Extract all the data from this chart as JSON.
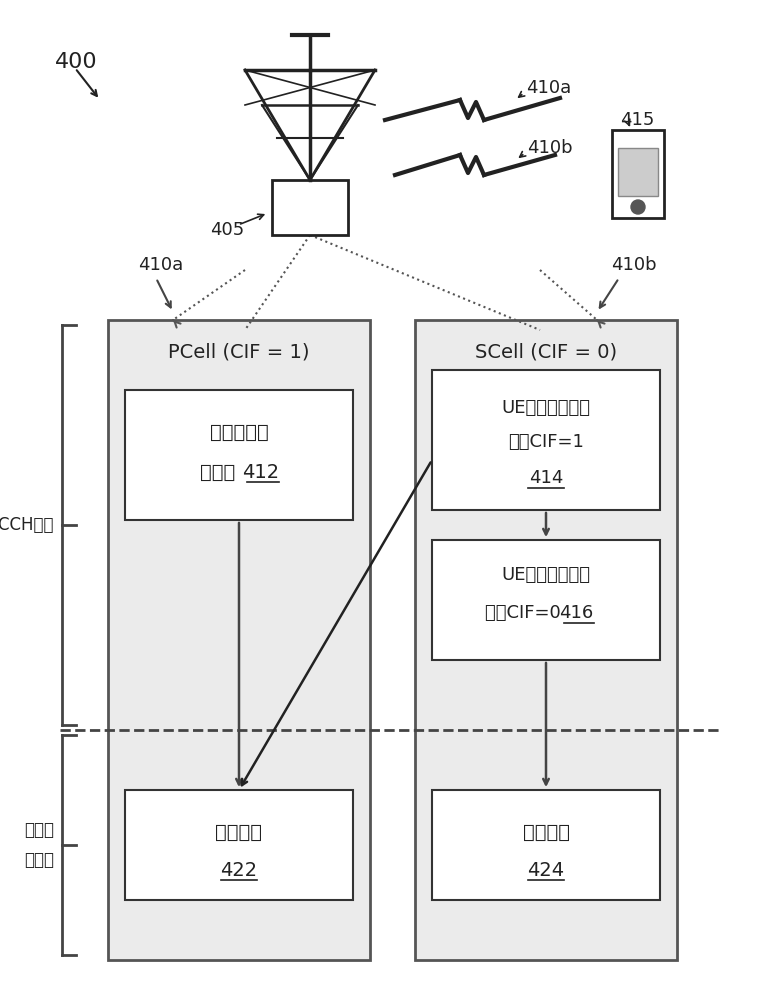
{
  "bg_color": "#ffffff",
  "label_400": "400",
  "label_405": "405",
  "label_415": "415",
  "label_410a_top": "410a",
  "label_410b_top": "410b",
  "label_410a_box": "410a",
  "label_410b_box": "410b",
  "pcell_title": "PCell (CIF = 1)",
  "scell_title": "SCell (CIF = 0)",
  "box412_l1": "公共搜索空",
  "box412_l2": "间配置 ",
  "box412_num": "412",
  "box414_l1": "UE特定搜索空间",
  "box414_l2": "配置CIF=1",
  "box414_num": "414",
  "box416_l1": "UE特定搜索空间",
  "box416_l2": "配置CIF=0 ",
  "box416_num": "416",
  "box422_l1": "数据传输",
  "box422_num": "422",
  "box424_l1": "数据传输",
  "box424_num": "424",
  "pdcch_label_l1": "PDCCH候选",
  "data_label_l1": "经调度",
  "data_label_l2": "的数据"
}
